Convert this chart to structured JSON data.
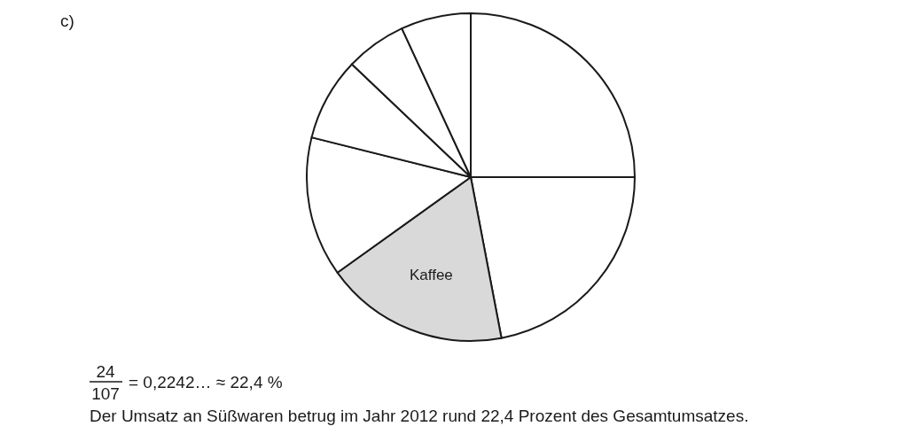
{
  "chart_data": {
    "type": "pie",
    "categories": [
      null,
      null,
      "Kaffee",
      null,
      null,
      null,
      null
    ],
    "values": [
      25,
      22,
      18.1,
      13.8,
      8.2,
      6,
      6.9
    ],
    "colors": [
      "#ffffff",
      "#ffffff",
      "#d9d9d9",
      "#ffffff",
      "#ffffff",
      "#ffffff",
      "#ffffff"
    ],
    "annotations": [
      "c)",
      "24",
      "107",
      "= 0,2242… ≈ 22,4 %",
      "Der Umsatz an Süßwaren betrug im Jahr 2012 rund 22,4 Prozent des Gesamtumsatzes."
    ]
  }
}
